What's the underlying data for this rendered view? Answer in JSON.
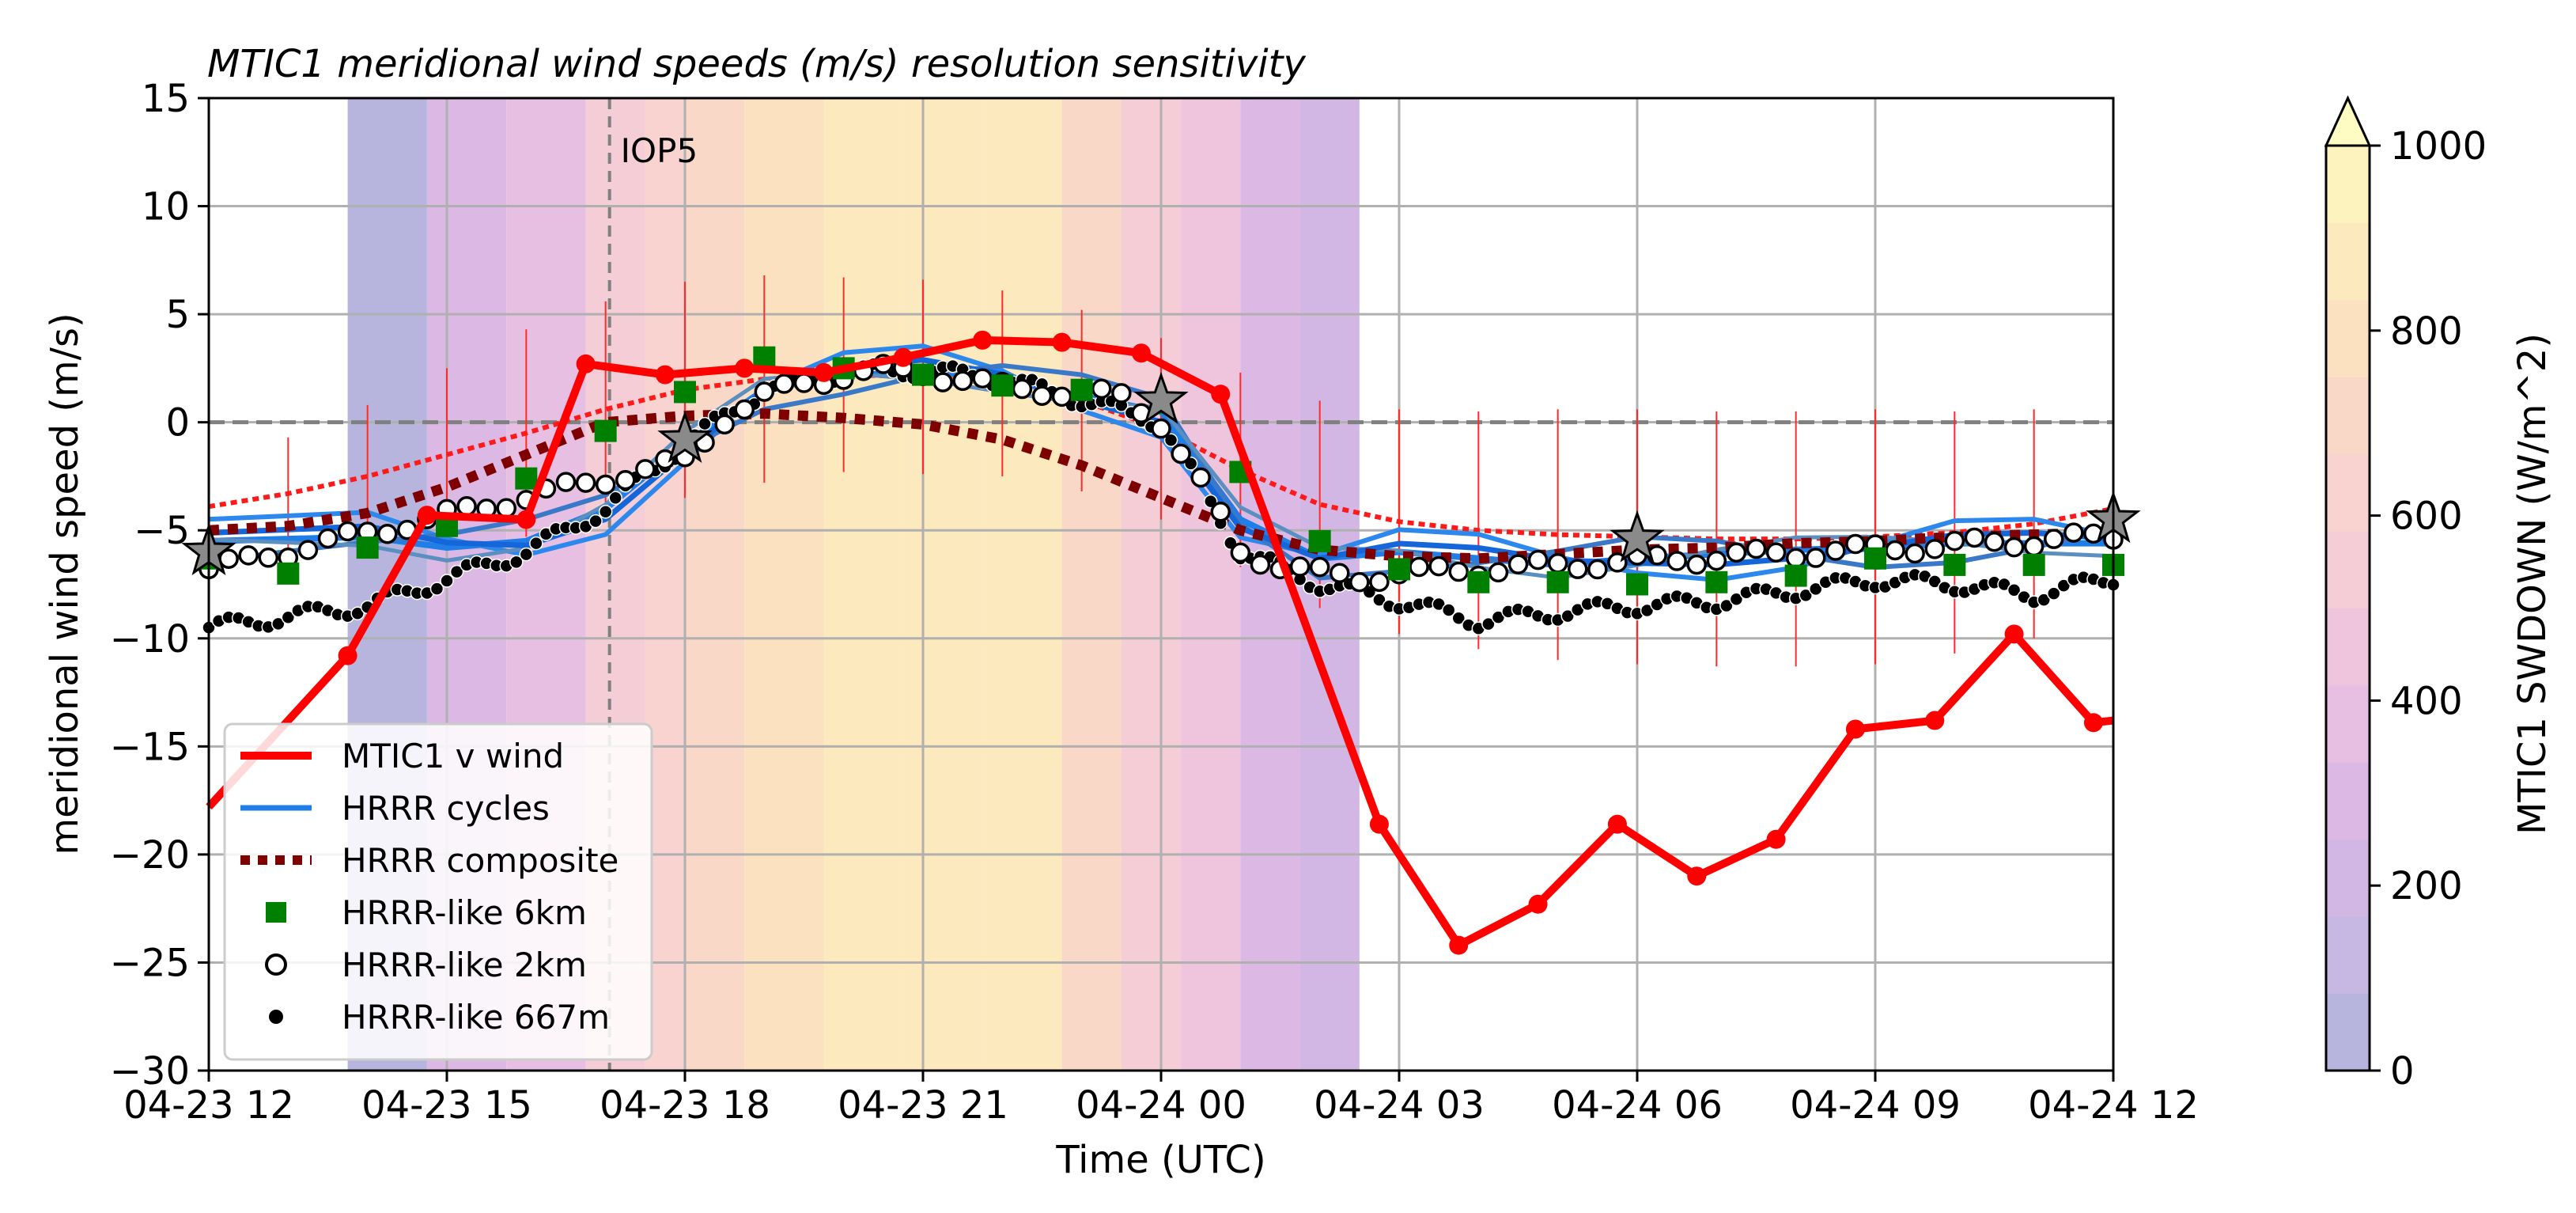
{
  "chart_data": {
    "type": "line",
    "title": "MTIC1 meridional wind speeds (m/s) resolution sensitivity",
    "xlabel": "Time (UTC)",
    "ylabel": "meridional wind speed (m/s)",
    "xlim_hours": [
      0,
      48
    ],
    "ylim": [
      -30,
      15
    ],
    "x_ticks": [
      {
        "h": 0,
        "label": "04-23 12"
      },
      {
        "h": 6,
        "label": "04-23 15"
      },
      {
        "h": 12,
        "label": "04-23 18"
      },
      {
        "h": 18,
        "label": "04-23 21"
      },
      {
        "h": 24,
        "label": "04-24 00"
      },
      {
        "h": 30,
        "label": "04-24 03"
      },
      {
        "h": 36,
        "label": "04-24 06"
      },
      {
        "h": 42,
        "label": "04-24 09"
      },
      {
        "h": 48,
        "label": "04-24 12"
      }
    ],
    "y_ticks": [
      15,
      10,
      5,
      0,
      -5,
      -10,
      -15,
      -20,
      -25,
      -30
    ],
    "grid": true,
    "annotation": {
      "text": "IOP5",
      "x_h": 10.1
    },
    "zero_line": 0,
    "legend_position": "lower-left",
    "legend": [
      {
        "label": "MTIC1 v wind",
        "style": "red-line-marker"
      },
      {
        "label": "HRRR cycles",
        "style": "blue-line"
      },
      {
        "label": "HRRR composite",
        "style": "darkred-dotted"
      },
      {
        "label": "HRRR-like 6km",
        "style": "green-square"
      },
      {
        "label": "HRRR-like 2km",
        "style": "white-circle"
      },
      {
        "label": "HRRR-like 667m",
        "style": "black-dot"
      }
    ],
    "series": [
      {
        "name": "MTIC1 v wind",
        "x": [
          0,
          3.5,
          5.5,
          8,
          9.5,
          11.5,
          13.5,
          15.5,
          17.5,
          19.5,
          21.5,
          23.5,
          25.5,
          29.5,
          31.5,
          33.5,
          35.5,
          37.5,
          39.5,
          41.5,
          43.5,
          45.5,
          47.5,
          48
        ],
        "y": [
          -17.8,
          -10.8,
          -4.3,
          -4.5,
          2.7,
          2.2,
          2.5,
          2.3,
          3.0,
          3.8,
          3.7,
          3.2,
          1.3,
          -18.6,
          -24.2,
          -22.3,
          -18.6,
          -21.0,
          -19.3,
          -14.2,
          -13.8,
          -9.8,
          -13.9,
          -13.8
        ]
      },
      {
        "name": "HRRR composite",
        "x": [
          0,
          2,
          4,
          6,
          8,
          10,
          12,
          14,
          16,
          18,
          20,
          22,
          24,
          26,
          28,
          30,
          32,
          34,
          36,
          38,
          40,
          42,
          44,
          46,
          48
        ],
        "y": [
          -5.0,
          -4.8,
          -4.2,
          -3.0,
          -1.5,
          0.0,
          0.3,
          0.4,
          0.2,
          -0.1,
          -0.8,
          -2.0,
          -3.5,
          -5.0,
          -5.9,
          -6.2,
          -6.3,
          -6.1,
          -5.9,
          -5.8,
          -5.6,
          -5.5,
          -5.3,
          -5.2,
          -5.1
        ]
      },
      {
        "name": "HRRR composite range",
        "x": [
          0,
          2,
          4,
          6,
          8,
          10,
          12,
          14,
          16,
          18,
          20,
          22,
          24,
          26,
          28,
          30,
          32,
          34,
          36,
          38,
          40,
          42,
          44,
          46,
          48
        ],
        "y": [
          -3.9,
          -3.3,
          -2.5,
          -1.5,
          -0.5,
          0.6,
          1.5,
          2.0,
          2.2,
          2.1,
          1.8,
          1.0,
          -0.3,
          -2.2,
          -3.8,
          -4.6,
          -5.0,
          -5.2,
          -5.3,
          -5.4,
          -5.4,
          -5.3,
          -5.1,
          -4.7,
          -4.0
        ]
      },
      {
        "name": "HRRR-like 6km",
        "x": [
          0,
          2,
          4,
          6,
          8,
          10,
          12,
          14,
          16,
          18,
          20,
          22,
          24,
          26,
          28,
          30,
          32,
          34,
          36,
          38,
          40,
          42,
          44,
          46,
          48
        ],
        "y": [
          -6.3,
          -7.0,
          -5.8,
          -4.8,
          -2.6,
          -0.4,
          1.4,
          3.0,
          2.5,
          2.2,
          1.7,
          1.5,
          0.9,
          -2.3,
          -5.5,
          -6.8,
          -7.4,
          -7.4,
          -7.5,
          -7.4,
          -7.1,
          -6.3,
          -6.6,
          -6.6,
          -6.6
        ]
      },
      {
        "name": "HRRR-like 2km",
        "x": [
          0,
          12,
          13,
          14,
          15,
          16,
          17,
          18,
          19,
          20,
          21,
          22,
          23,
          24,
          25,
          26,
          27,
          28,
          29,
          30,
          48
        ],
        "y": [
          -6.8,
          -1.8,
          0.2,
          1.2,
          1.8,
          2.2,
          2.4,
          2.3,
          2.0,
          1.6,
          1.5,
          1.3,
          1.2,
          0.0,
          -2.8,
          -6.0,
          -6.6,
          -7.0,
          -7.2,
          -7.0,
          -5.3
        ]
      },
      {
        "name": "HRRR-like 667m",
        "x": [
          0,
          4,
          8,
          10,
          12,
          14,
          16,
          18,
          20,
          22,
          24,
          25,
          26,
          28,
          30,
          32,
          34,
          36,
          38,
          40,
          42,
          44,
          46,
          48
        ],
        "y": [
          -9.5,
          -8.5,
          -6.0,
          -4.0,
          -1.0,
          1.5,
          2.3,
          2.4,
          2.0,
          1.0,
          0.0,
          -3.0,
          -6.0,
          -7.5,
          -8.3,
          -9.2,
          -8.8,
          -8.5,
          -8.3,
          -7.8,
          -7.3,
          -7.5,
          -8.0,
          -7.2
        ]
      },
      {
        "name": "HRRR cycles",
        "x": [
          0,
          4,
          6,
          8,
          10,
          12,
          14,
          16,
          18,
          20,
          22,
          24,
          26,
          28,
          30,
          32,
          34,
          36,
          38,
          40,
          42,
          44,
          46,
          48
        ],
        "y": [
          -5.5,
          -5.3,
          -5.8,
          -5.5,
          -4.0,
          -1.0,
          1.5,
          2.2,
          2.4,
          2.0,
          1.2,
          0.5,
          -4.5,
          -6.3,
          -6.0,
          -6.3,
          -6.6,
          -6.3,
          -6.1,
          -5.9,
          -5.8,
          -5.6,
          -5.6,
          -5.6
        ]
      }
    ],
    "error_bar_times": [
      0,
      2,
      4,
      6,
      8,
      10,
      12,
      14,
      16,
      18,
      20,
      22,
      24,
      26,
      28,
      30,
      32,
      34,
      36,
      38,
      40,
      42,
      44,
      46,
      48
    ],
    "error_bar_half_range": [
      2.3,
      2.6,
      3.3,
      4.0,
      4.8,
      5.0,
      5.0,
      4.8,
      4.5,
      4.5,
      4.3,
      4.2,
      4.2,
      4.5,
      4.8,
      5.2,
      5.5,
      5.8,
      5.9,
      5.9,
      5.9,
      5.9,
      5.6,
      5.3,
      4.9
    ],
    "stars": [
      {
        "x": 0,
        "y": -6.0
      },
      {
        "x": 12,
        "y": -0.8
      },
      {
        "x": 24,
        "y": 1.0
      },
      {
        "x": 36,
        "y": -5.4
      },
      {
        "x": 48,
        "y": -4.5
      }
    ],
    "shading_variable": {
      "name": "MTIC1 SWDOWN",
      "times": [
        3.5,
        5.5,
        7.5,
        9.5,
        11,
        12,
        13.5,
        15.5,
        17.5,
        19.5,
        21.5,
        23,
        24.5,
        26,
        27.5,
        29
      ],
      "values": [
        50,
        270,
        360,
        560,
        640,
        700,
        820,
        850,
        860,
        840,
        690,
        580,
        480,
        320,
        180,
        50
      ]
    },
    "colorbar": {
      "label": "MTIC1 SWDOWN (W/m^2)",
      "min": 0,
      "max": 1000,
      "extend": "max",
      "ticks": [
        1000,
        800,
        600,
        400,
        200,
        0
      ],
      "colors": [
        "#b7b5dd",
        "#c6b8e2",
        "#d2b6e4",
        "#dcb9e4",
        "#e6bfe2",
        "#efc5de",
        "#f4cdd7",
        "#f8d3cf",
        "#fad8c7",
        "#fbe1bf",
        "#fce9bd",
        "#fdf3bf",
        "#fefbc3"
      ]
    }
  }
}
